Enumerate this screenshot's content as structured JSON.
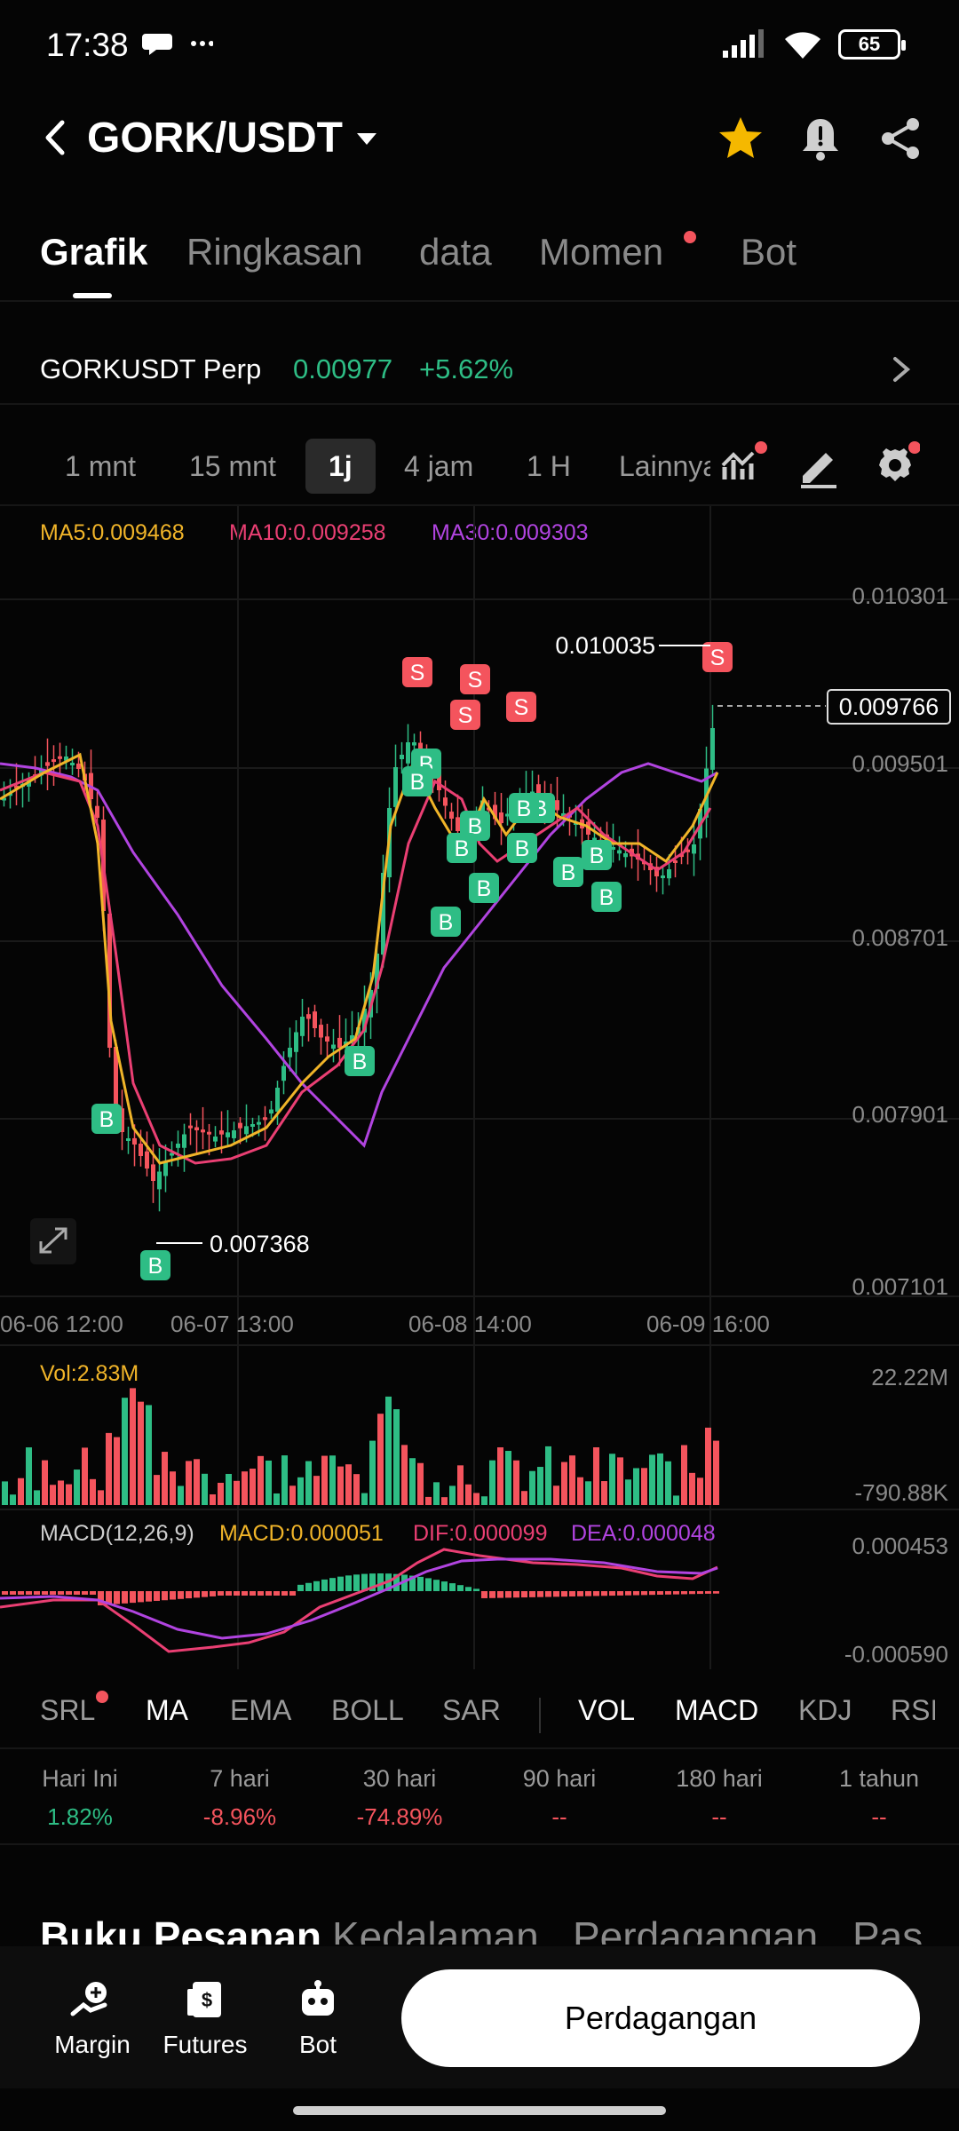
{
  "status": {
    "time": "17:38",
    "battery": "65"
  },
  "header": {
    "pair": "GORK/USDT"
  },
  "tabs": [
    {
      "label": "Grafik"
    },
    {
      "label": "Ringkasan"
    },
    {
      "label": "data"
    },
    {
      "label": "Momen"
    },
    {
      "label": "Bot"
    }
  ],
  "perp": {
    "name": "GORKUSDT Perp",
    "price": "0.00977",
    "change": "+5.62%"
  },
  "intervals": [
    "1 mnt",
    "15 mnt",
    "1j",
    "4 jam",
    "1 H",
    "Lainnya"
  ],
  "ma": {
    "ma5": "MA5:0.009468",
    "ma10": "MA10:0.009258",
    "ma30": "MA30:0.009303"
  },
  "colors": {
    "up": "#2ebd85",
    "down": "#f4545d",
    "ma5": "#f0b429",
    "ma10": "#ea3f73",
    "ma30": "#b144e0"
  },
  "chart_data": {
    "type": "candlestick",
    "y_ticks": [
      "0.010301",
      "0.009501",
      "0.008701",
      "0.007901",
      "0.007101"
    ],
    "y_range": [
      0.007101,
      0.010301
    ],
    "x_ticks": [
      "06-06 12:00",
      "06-07 13:00",
      "06-08 14:00",
      "06-09 16:00"
    ],
    "high_label": "0.010035",
    "low_label": "0.007368",
    "current_price": "0.009766",
    "markers": {
      "buy": "B",
      "sell": "S"
    },
    "volume": {
      "label": "Vol:2.83M",
      "max": "22.22M",
      "min": "-790.88K"
    },
    "macd": {
      "label": "MACD(12,26,9)",
      "macd": "MACD:0.000051",
      "dif": "DIF:0.000099",
      "dea": "DEA:0.000048",
      "max": "0.000453",
      "min": "-0.000590"
    }
  },
  "indicators": [
    {
      "label": "SRL"
    },
    {
      "label": "MA"
    },
    {
      "label": "EMA"
    },
    {
      "label": "BOLL"
    },
    {
      "label": "SAR"
    },
    {
      "label": "VOL"
    },
    {
      "label": "MACD"
    },
    {
      "label": "KDJ"
    },
    {
      "label": "RSI"
    }
  ],
  "performance": [
    {
      "label": "Hari Ini",
      "value": "1.82%"
    },
    {
      "label": "7 hari",
      "value": "-8.96%"
    },
    {
      "label": "30 hari",
      "value": "-74.89%"
    },
    {
      "label": "90 hari",
      "value": "--"
    },
    {
      "label": "180 hari",
      "value": "--"
    },
    {
      "label": "1 tahun",
      "value": "--"
    }
  ],
  "orderbook_tabs": [
    "Buku Pesanan",
    "Kedalaman",
    "Perdagangan",
    "Pas"
  ],
  "bottom": {
    "margin": "Margin",
    "futures": "Futures",
    "bot": "Bot",
    "trade": "Perdagangan"
  }
}
